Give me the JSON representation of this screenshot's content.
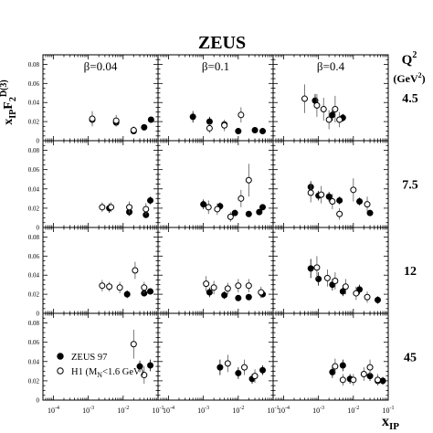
{
  "title": "ZEUS",
  "y_axis_label": {
    "main": "x",
    "sub1": "IP",
    "main2": "F",
    "sub2": "2",
    "sup2": "D(3)"
  },
  "x_axis_label": {
    "main": "x",
    "sub": "IP"
  },
  "q2_header": {
    "line1": "Q",
    "sup": "2",
    "line2": "(GeV",
    "sup2": "2",
    "close": ")"
  },
  "x_tick_labels": [
    {
      "base": "10",
      "exp": "-4"
    },
    {
      "base": "10",
      "exp": "-3"
    },
    {
      "base": "10",
      "exp": "-2"
    },
    {
      "base": "10",
      "exp": "-1"
    }
  ],
  "legend": {
    "zeus": "ZEUS 97",
    "h1_prefix": "H1 (M",
    "h1_sub": "N",
    "h1_suffix": "<1.6 GeV)"
  },
  "chart_data": {
    "type": "scatter",
    "title": "ZEUS",
    "xlabel": "x_IP",
    "ylabel": "x_IP F2^D(3)",
    "xscale": "log",
    "xlim": [
      5e-05,
      0.1
    ],
    "ylim": [
      0,
      0.09
    ],
    "y_ticks": [
      "0",
      "0.02",
      "0.04",
      "0.06",
      "0.08"
    ],
    "beta_labels": [
      "β=0.04",
      "β=0.1",
      "β=0.4"
    ],
    "q2_labels": [
      "4.5",
      "7.5",
      "12",
      "45"
    ],
    "series": [
      {
        "name": "ZEUS 97",
        "marker": "filled-circle"
      },
      {
        "name": "H1 (MN<1.6 GeV)",
        "marker": "open-circle"
      }
    ],
    "panels": [
      {
        "row": 0,
        "col": 0,
        "zeus": [
          [
            0.0013,
            0.022,
            0.005
          ],
          [
            0.0063,
            0.019,
            0.004
          ],
          [
            0.02,
            0.01,
            0.003
          ],
          [
            0.04,
            0.014,
            0.003
          ],
          [
            0.063,
            0.022,
            0.003
          ]
        ],
        "h1": [
          [
            0.0013,
            0.023,
            0.008
          ],
          [
            0.0063,
            0.021,
            0.006
          ],
          [
            0.02,
            0.011,
            0.004
          ]
        ]
      },
      {
        "row": 0,
        "col": 1,
        "zeus": [
          [
            0.0005,
            0.025,
            0.006
          ],
          [
            0.0015,
            0.02,
            0.005
          ],
          [
            0.004,
            0.017,
            0.004
          ],
          [
            0.01,
            0.01,
            0.003
          ],
          [
            0.03,
            0.011,
            0.003
          ],
          [
            0.05,
            0.01,
            0.003
          ]
        ],
        "h1": [
          [
            0.0015,
            0.013,
            0.005
          ],
          [
            0.004,
            0.016,
            0.006
          ],
          [
            0.012,
            0.027,
            0.008
          ]
        ]
      },
      {
        "row": 0,
        "col": 2,
        "zeus": [
          [
            0.0008,
            0.042,
            0.007
          ],
          [
            0.0025,
            0.027,
            0.006
          ],
          [
            0.005,
            0.024,
            0.004
          ]
        ],
        "h1": [
          [
            0.0004,
            0.044,
            0.015
          ],
          [
            0.0009,
            0.037,
            0.012
          ],
          [
            0.0014,
            0.033,
            0.012
          ],
          [
            0.002,
            0.022,
            0.01
          ],
          [
            0.003,
            0.033,
            0.014
          ],
          [
            0.004,
            0.022,
            0.008
          ]
        ]
      },
      {
        "row": 1,
        "col": 0,
        "zeus": [
          [
            0.004,
            0.02,
            0.005
          ],
          [
            0.015,
            0.016,
            0.004
          ],
          [
            0.045,
            0.013,
            0.003
          ],
          [
            0.06,
            0.028,
            0.004
          ]
        ],
        "h1": [
          [
            0.0025,
            0.021,
            0.005
          ],
          [
            0.0045,
            0.021,
            0.005
          ],
          [
            0.015,
            0.021,
            0.006
          ],
          [
            0.045,
            0.019,
            0.006
          ]
        ]
      },
      {
        "row": 1,
        "col": 1,
        "zeus": [
          [
            0.001,
            0.024,
            0.005
          ],
          [
            0.003,
            0.022,
            0.004
          ],
          [
            0.008,
            0.015,
            0.003
          ],
          [
            0.02,
            0.014,
            0.003
          ],
          [
            0.04,
            0.016,
            0.003
          ],
          [
            0.05,
            0.021,
            0.003
          ]
        ],
        "h1": [
          [
            0.0014,
            0.021,
            0.007
          ],
          [
            0.0025,
            0.019,
            0.006
          ],
          [
            0.006,
            0.011,
            0.005
          ],
          [
            0.012,
            0.03,
            0.009
          ],
          [
            0.02,
            0.049,
            0.017
          ]
        ]
      },
      {
        "row": 1,
        "col": 2,
        "zeus": [
          [
            0.0006,
            0.042,
            0.006
          ],
          [
            0.001,
            0.033,
            0.005
          ],
          [
            0.002,
            0.032,
            0.005
          ],
          [
            0.004,
            0.028,
            0.004
          ],
          [
            0.015,
            0.027,
            0.004
          ],
          [
            0.03,
            0.015,
            0.003
          ]
        ],
        "h1": [
          [
            0.0006,
            0.036,
            0.01
          ],
          [
            0.0012,
            0.034,
            0.009
          ],
          [
            0.0025,
            0.027,
            0.008
          ],
          [
            0.004,
            0.014,
            0.006
          ],
          [
            0.01,
            0.039,
            0.012
          ],
          [
            0.025,
            0.024,
            0.008
          ]
        ]
      },
      {
        "row": 2,
        "col": 0,
        "zeus": [
          [
            0.013,
            0.02,
            0.004
          ],
          [
            0.04,
            0.021,
            0.003
          ],
          [
            0.06,
            0.023,
            0.003
          ]
        ],
        "h1": [
          [
            0.0025,
            0.029,
            0.006
          ],
          [
            0.004,
            0.028,
            0.005
          ],
          [
            0.008,
            0.027,
            0.006
          ],
          [
            0.022,
            0.045,
            0.009
          ],
          [
            0.04,
            0.027,
            0.006
          ]
        ]
      },
      {
        "row": 2,
        "col": 1,
        "zeus": [
          [
            0.0015,
            0.022,
            0.005
          ],
          [
            0.004,
            0.019,
            0.004
          ],
          [
            0.01,
            0.016,
            0.003
          ],
          [
            0.02,
            0.017,
            0.003
          ],
          [
            0.05,
            0.02,
            0.003
          ]
        ],
        "h1": [
          [
            0.0012,
            0.031,
            0.008
          ],
          [
            0.002,
            0.027,
            0.007
          ],
          [
            0.005,
            0.026,
            0.006
          ],
          [
            0.01,
            0.029,
            0.007
          ],
          [
            0.02,
            0.029,
            0.007
          ],
          [
            0.045,
            0.022,
            0.006
          ]
        ]
      },
      {
        "row": 2,
        "col": 2,
        "zeus": [
          [
            0.0006,
            0.047,
            0.01
          ],
          [
            0.001,
            0.036,
            0.007
          ],
          [
            0.0025,
            0.03,
            0.006
          ],
          [
            0.005,
            0.023,
            0.005
          ],
          [
            0.015,
            0.025,
            0.005
          ],
          [
            0.05,
            0.014,
            0.004
          ]
        ],
        "h1": [
          [
            0.0009,
            0.048,
            0.012
          ],
          [
            0.0018,
            0.037,
            0.009
          ],
          [
            0.003,
            0.034,
            0.009
          ],
          [
            0.006,
            0.028,
            0.008
          ],
          [
            0.012,
            0.021,
            0.007
          ],
          [
            0.025,
            0.017,
            0.006
          ]
        ]
      },
      {
        "row": 3,
        "col": 0,
        "zeus": [
          [
            0.03,
            0.035,
            0.006
          ],
          [
            0.06,
            0.036,
            0.006
          ]
        ],
        "h1": [
          [
            0.02,
            0.058,
            0.015
          ],
          [
            0.04,
            0.026,
            0.009
          ]
        ]
      },
      {
        "row": 3,
        "col": 1,
        "zeus": [
          [
            0.003,
            0.034,
            0.008
          ],
          [
            0.01,
            0.028,
            0.006
          ],
          [
            0.025,
            0.022,
            0.005
          ],
          [
            0.05,
            0.031,
            0.005
          ]
        ],
        "h1": [
          [
            0.005,
            0.038,
            0.009
          ],
          [
            0.015,
            0.034,
            0.008
          ],
          [
            0.03,
            0.025,
            0.007
          ]
        ]
      },
      {
        "row": 3,
        "col": 2,
        "zeus": [
          [
            0.0025,
            0.029,
            0.006
          ],
          [
            0.005,
            0.036,
            0.006
          ],
          [
            0.008,
            0.022,
            0.005
          ],
          [
            0.03,
            0.025,
            0.005
          ],
          [
            0.05,
            0.02,
            0.004
          ],
          [
            0.07,
            0.02,
            0.004
          ]
        ],
        "h1": [
          [
            0.003,
            0.035,
            0.008
          ],
          [
            0.005,
            0.021,
            0.006
          ],
          [
            0.01,
            0.021,
            0.006
          ],
          [
            0.02,
            0.027,
            0.007
          ],
          [
            0.03,
            0.034,
            0.008
          ],
          [
            0.05,
            0.021,
            0.006
          ]
        ]
      }
    ]
  }
}
